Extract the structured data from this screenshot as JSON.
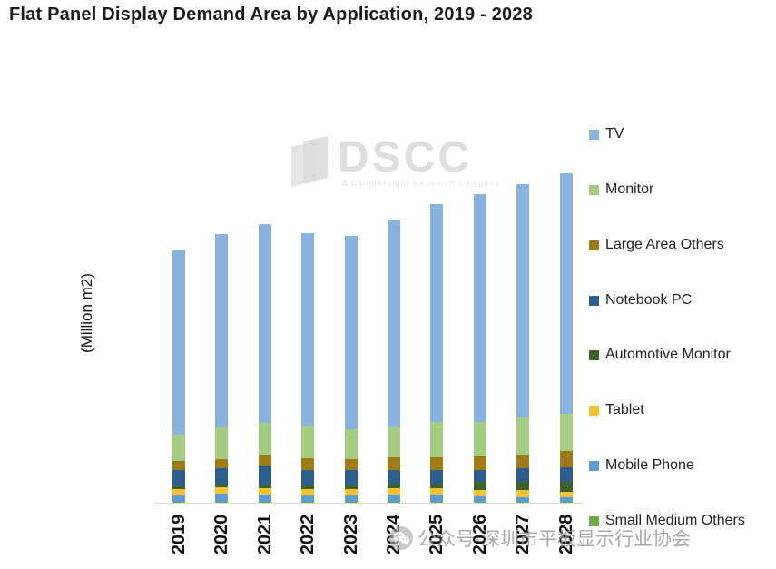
{
  "title": "Flat Panel Display Demand Area by Application, 2019 - 2028",
  "watermark": {
    "logo_text": "DSCC",
    "tagline": "A Counterpoint Research Company",
    "bottom_text": "公众号·深圳市平板显示行业协会"
  },
  "chart_data": {
    "type": "bar",
    "stacked": true,
    "title": "Flat Panel Display Demand Area by Application, 2019 - 2028",
    "xlabel": "",
    "ylabel": "(Million m2)",
    "unit": "Million m2",
    "grid": false,
    "y_axis_ticks_visible": false,
    "legend_position": "right",
    "categories": [
      "2019",
      "2020",
      "2021",
      "2022",
      "2023",
      "2024",
      "2025",
      "2026",
      "2027",
      "2028"
    ],
    "series": [
      {
        "name": "TV",
        "color": "#89B2DE",
        "values": [
          168.5,
          177.5,
          182.5,
          176.5,
          177.0,
          190.5,
          199.5,
          209.0,
          214.5,
          221.0
        ]
      },
      {
        "name": "Monitor",
        "color": "#A4CD82",
        "values": [
          24.5,
          28.5,
          29.5,
          30.0,
          28.0,
          28.5,
          32.5,
          32.0,
          34.5,
          34.0
        ]
      },
      {
        "name": "Large Area Others",
        "color": "#9E7B16",
        "values": [
          8.5,
          9.0,
          10.0,
          10.5,
          10.0,
          11.5,
          11.5,
          12.0,
          12.5,
          15.0
        ]
      },
      {
        "name": "Notebook PC",
        "color": "#2C5F8E",
        "values": [
          14.0,
          14.0,
          17.0,
          14.0,
          13.5,
          12.5,
          12.5,
          11.5,
          12.0,
          13.5
        ]
      },
      {
        "name": "Automotive Monitor",
        "color": "#3F6228",
        "values": [
          3.0,
          3.0,
          3.5,
          3.5,
          3.5,
          4.0,
          4.5,
          7.0,
          8.0,
          9.0
        ]
      },
      {
        "name": "Tablet",
        "color": "#F3C231",
        "values": [
          6.0,
          6.0,
          6.0,
          6.0,
          6.0,
          6.0,
          6.0,
          6.0,
          6.0,
          5.0
        ]
      },
      {
        "name": "Mobile Phone",
        "color": "#5C9BD5",
        "values": [
          6.0,
          7.5,
          6.5,
          6.0,
          6.0,
          6.5,
          6.5,
          5.0,
          4.5,
          4.0
        ]
      },
      {
        "name": "Small Medium Others",
        "color": "#6CAB47",
        "values": [
          0.8,
          0.8,
          0.8,
          0.8,
          0.8,
          0.8,
          0.8,
          0.8,
          0.8,
          0.8
        ]
      }
    ],
    "totals": [
      231.3,
      246.3,
      255.8,
      247.3,
      244.8,
      260.3,
      273.8,
      283.3,
      292.8,
      302.3
    ]
  }
}
